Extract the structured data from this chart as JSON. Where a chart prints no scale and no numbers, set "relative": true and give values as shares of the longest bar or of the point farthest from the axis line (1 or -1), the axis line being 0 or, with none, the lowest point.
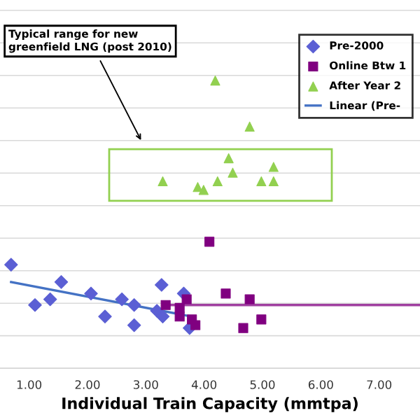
{
  "chart_data": {
    "type": "scatter",
    "relative": true,
    "xlabel": "Individual Train Capacity (mmtpa)",
    "xlim": [
      0.5,
      7.7
    ],
    "xticks": [
      {
        "value": 1,
        "label": "1.00"
      },
      {
        "value": 2,
        "label": "2.00"
      },
      {
        "value": 3,
        "label": "3.00"
      },
      {
        "value": 4,
        "label": "4.00"
      },
      {
        "value": 5,
        "label": "5.00"
      },
      {
        "value": 6,
        "label": "6.00"
      },
      {
        "value": 7,
        "label": "7.00"
      }
    ],
    "grid": "y",
    "legend": "top right",
    "tick_labels": "x",
    "annotations": [
      "Typical range for new\ngreenfield LNG (post 2010)"
    ],
    "series": [
      {
        "name": "Pre-2000",
        "marker": "diamond",
        "color": "#5b5fd4",
        "x": [
          0.69,
          1.1,
          1.36,
          1.55,
          2.06,
          2.3,
          2.59,
          2.8,
          2.8,
          3.19,
          3.27,
          3.29,
          3.65,
          3.75
        ],
        "values": [
          0.36,
          0.22,
          0.24,
          0.3,
          0.26,
          0.18,
          0.24,
          0.22,
          0.15,
          0.2,
          0.29,
          0.18,
          0.26,
          0.14
        ]
      },
      {
        "name": "Online Btw 1",
        "marker": "square",
        "color": "#800080",
        "x": [
          3.34,
          3.58,
          3.58,
          3.7,
          3.79,
          3.85,
          4.09,
          4.37,
          4.78,
          4.98,
          4.67
        ],
        "values": [
          0.22,
          0.21,
          0.18,
          0.24,
          0.17,
          0.15,
          0.44,
          0.26,
          0.24,
          0.17,
          0.14
        ]
      },
      {
        "name": "After Year 2",
        "marker": "triangle",
        "color": "#92d050",
        "x": [
          4.19,
          4.78,
          4.42,
          4.49,
          5.19,
          3.29,
          3.89,
          3.99,
          4.23,
          4.98,
          5.19
        ],
        "values": [
          1.0,
          0.84,
          0.73,
          0.68,
          0.7,
          0.65,
          0.63,
          0.62,
          0.65,
          0.65,
          0.65
        ]
      },
      {
        "name": "Linear (Pre-",
        "type": "line",
        "color": "#4472c4",
        "x": [
          0.69,
          3.79
        ],
        "values": [
          0.3,
          0.18
        ]
      },
      {
        "type": "line",
        "color": "#a040a0",
        "x": [
          3.34,
          7.7
        ],
        "values": [
          0.22,
          0.22
        ]
      }
    ]
  }
}
